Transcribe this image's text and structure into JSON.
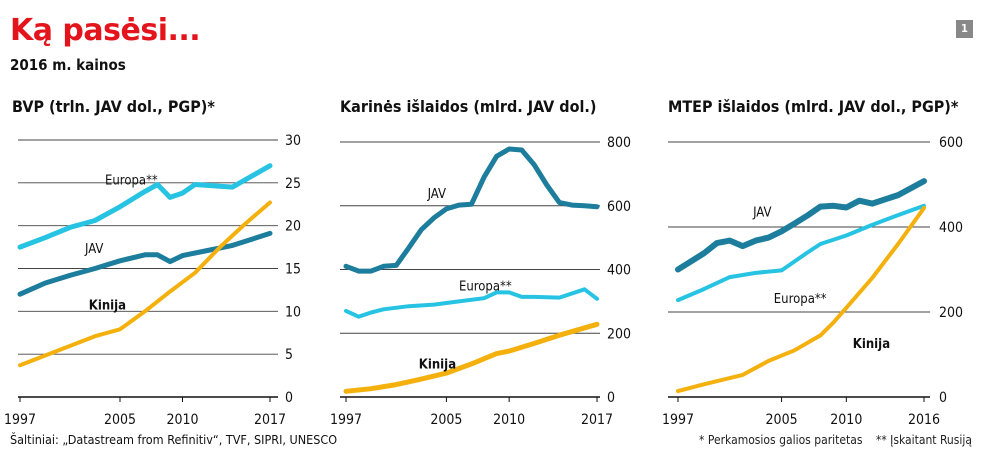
{
  "header": {
    "title": "Ką pasėsi...",
    "subtitle": "2016 m. kainos",
    "badge": "1"
  },
  "colors": {
    "jav": "#1c7d9c",
    "europa": "#27c3e3",
    "kinija": "#f4b10d",
    "grid": "#444444"
  },
  "footer": {
    "source": "Šaltiniai: „Datastream from Refinitiv“, TVF, SIPRI, UNESCO",
    "note_ppp": "* Perkamosios galios paritetas",
    "note_russia": "** Įskaitant Rusiją"
  },
  "chart_data": [
    {
      "type": "line",
      "title": "BVP (trln. JAV dol., PGP)*",
      "x_ticks": [
        1997,
        2005,
        2010,
        2017
      ],
      "y_ticks": [
        0,
        5,
        10,
        15,
        20,
        25,
        30
      ],
      "xlim": [
        1997,
        2017
      ],
      "ylim": [
        0,
        30
      ],
      "series": [
        {
          "name": "Europa**",
          "color_key": "europa",
          "line_width": 5,
          "points": [
            [
              1997,
              17.5
            ],
            [
              1999,
              18.6
            ],
            [
              2001,
              19.8
            ],
            [
              2003,
              20.6
            ],
            [
              2005,
              22.2
            ],
            [
              2007,
              24.0
            ],
            [
              2008,
              24.8
            ],
            [
              2009,
              23.3
            ],
            [
              2010,
              23.8
            ],
            [
              2011,
              24.8
            ],
            [
              2012,
              24.7
            ],
            [
              2014,
              24.5
            ],
            [
              2017,
              27.0
            ]
          ]
        },
        {
          "name": "JAV",
          "color_key": "jav",
          "line_width": 5,
          "points": [
            [
              1997,
              12.0
            ],
            [
              1999,
              13.3
            ],
            [
              2001,
              14.2
            ],
            [
              2003,
              15.0
            ],
            [
              2005,
              15.9
            ],
            [
              2007,
              16.6
            ],
            [
              2008,
              16.6
            ],
            [
              2009,
              15.8
            ],
            [
              2010,
              16.5
            ],
            [
              2012,
              17.1
            ],
            [
              2014,
              17.7
            ],
            [
              2017,
              19.1
            ]
          ]
        },
        {
          "name": "Kinija",
          "color_key": "kinija",
          "line_width": 4,
          "points": [
            [
              1997,
              3.7
            ],
            [
              2000,
              5.4
            ],
            [
              2003,
              7.1
            ],
            [
              2005,
              7.9
            ],
            [
              2007,
              10.0
            ],
            [
              2009,
              12.3
            ],
            [
              2011,
              14.5
            ],
            [
              2013,
              17.5
            ],
            [
              2015,
              20.2
            ],
            [
              2017,
              22.7
            ]
          ]
        }
      ]
    },
    {
      "type": "line",
      "title": "Karinės išlaidos (mlrd. JAV dol.)",
      "x_ticks": [
        1997,
        2005,
        2010,
        2017
      ],
      "y_ticks": [
        0,
        200,
        400,
        600,
        800
      ],
      "xlim": [
        1997,
        2017
      ],
      "ylim": [
        0,
        800
      ],
      "series": [
        {
          "name": "JAV",
          "color_key": "jav",
          "line_width": 5,
          "points": [
            [
              1997,
              410
            ],
            [
              1998,
              395
            ],
            [
              1999,
              395
            ],
            [
              2000,
              410
            ],
            [
              2001,
              413
            ],
            [
              2002,
              468
            ],
            [
              2003,
              525
            ],
            [
              2004,
              562
            ],
            [
              2005,
              590
            ],
            [
              2006,
              602
            ],
            [
              2007,
              605
            ],
            [
              2008,
              690
            ],
            [
              2009,
              755
            ],
            [
              2010,
              778
            ],
            [
              2011,
              775
            ],
            [
              2012,
              728
            ],
            [
              2013,
              665
            ],
            [
              2014,
              610
            ],
            [
              2015,
              602
            ],
            [
              2016,
              600
            ],
            [
              2017,
              597
            ]
          ]
        },
        {
          "name": "Europa**",
          "color_key": "europa",
          "line_width": 4,
          "points": [
            [
              1997,
              270
            ],
            [
              1998,
              252
            ],
            [
              1999,
              265
            ],
            [
              2000,
              275
            ],
            [
              2002,
              285
            ],
            [
              2004,
              290
            ],
            [
              2006,
              300
            ],
            [
              2008,
              310
            ],
            [
              2009,
              328
            ],
            [
              2010,
              328
            ],
            [
              2011,
              314
            ],
            [
              2012,
              314
            ],
            [
              2014,
              312
            ],
            [
              2016,
              338
            ],
            [
              2017,
              308
            ]
          ]
        },
        {
          "name": "Kinija",
          "color_key": "kinija",
          "line_width": 5,
          "points": [
            [
              1997,
              18
            ],
            [
              1999,
              26
            ],
            [
              2001,
              39
            ],
            [
              2003,
              56
            ],
            [
              2005,
              75
            ],
            [
              2007,
              104
            ],
            [
              2009,
              136
            ],
            [
              2010,
              144
            ],
            [
              2012,
              168
            ],
            [
              2014,
              194
            ],
            [
              2017,
              228
            ]
          ]
        }
      ]
    },
    {
      "type": "line",
      "title": "MTEP išlaidos (mlrd. JAV dol., PGP)*",
      "x_ticks": [
        1997,
        2005,
        2010,
        2016
      ],
      "y_ticks": [
        0,
        200,
        400,
        600
      ],
      "xlim": [
        1997,
        2016
      ],
      "ylim": [
        0,
        600
      ],
      "series": [
        {
          "name": "JAV",
          "color_key": "jav",
          "line_width": 6,
          "points": [
            [
              1997,
              300
            ],
            [
              1999,
              338
            ],
            [
              2000,
              362
            ],
            [
              2001,
              368
            ],
            [
              2002,
              355
            ],
            [
              2003,
              368
            ],
            [
              2004,
              375
            ],
            [
              2005,
              390
            ],
            [
              2006,
              408
            ],
            [
              2007,
              427
            ],
            [
              2008,
              448
            ],
            [
              2009,
              450
            ],
            [
              2010,
              446
            ],
            [
              2011,
              462
            ],
            [
              2012,
              455
            ],
            [
              2014,
              475
            ],
            [
              2016,
              508
            ]
          ]
        },
        {
          "name": "Europa**",
          "color_key": "europa",
          "line_width": 4,
          "points": [
            [
              1997,
              228
            ],
            [
              1999,
              254
            ],
            [
              2001,
              282
            ],
            [
              2003,
              292
            ],
            [
              2005,
              298
            ],
            [
              2007,
              340
            ],
            [
              2008,
              360
            ],
            [
              2010,
              380
            ],
            [
              2012,
              405
            ],
            [
              2014,
              428
            ],
            [
              2016,
              450
            ]
          ]
        },
        {
          "name": "Kinija",
          "color_key": "kinija",
          "line_width": 4,
          "points": [
            [
              1997,
              14
            ],
            [
              1999,
              30
            ],
            [
              2002,
              52
            ],
            [
              2004,
              85
            ],
            [
              2006,
              110
            ],
            [
              2008,
              145
            ],
            [
              2009,
              175
            ],
            [
              2010,
              210
            ],
            [
              2012,
              280
            ],
            [
              2014,
              360
            ],
            [
              2016,
              445
            ]
          ]
        }
      ]
    }
  ],
  "annotations": [
    {
      "chart": 0,
      "text": "Europa**",
      "series": "Europa**",
      "x": 2003.8,
      "y": 25.4,
      "weight": "normal"
    },
    {
      "chart": 0,
      "text": "JAV",
      "series": "JAV",
      "x": 2002.2,
      "y": 17.4,
      "weight": "normal"
    },
    {
      "chart": 0,
      "text": "Kinija",
      "series": "Kinija",
      "x": 2002.5,
      "y": 10.8,
      "weight": "bold"
    },
    {
      "chart": 1,
      "text": "JAV",
      "series": "JAV",
      "x": 2003.5,
      "y": 640,
      "weight": "normal"
    },
    {
      "chart": 1,
      "text": "Europa**",
      "series": "Europa**",
      "x": 2006.0,
      "y": 350,
      "weight": "normal"
    },
    {
      "chart": 1,
      "text": "Kinija",
      "series": "Kinija",
      "x": 2002.8,
      "y": 105,
      "weight": "bold"
    },
    {
      "chart": 2,
      "text": "JAV",
      "series": "JAV",
      "x": 2002.8,
      "y": 437,
      "weight": "normal"
    },
    {
      "chart": 2,
      "text": "Europa**",
      "series": "Europa**",
      "x": 2004.4,
      "y": 233,
      "weight": "normal"
    },
    {
      "chart": 2,
      "text": "Kinija",
      "series": "Kinija",
      "x": 2010.5,
      "y": 127,
      "weight": "bold"
    }
  ]
}
